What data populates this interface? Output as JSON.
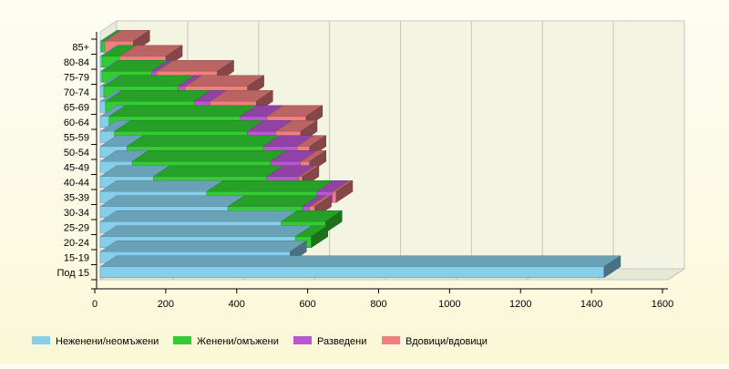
{
  "chart_data": {
    "type": "bar",
    "orientation": "horizontal",
    "stacked": true,
    "style": "3d",
    "title": "",
    "xlabel": "",
    "ylabel": "",
    "xlim": [
      0,
      1600
    ],
    "x_ticks": [
      0,
      200,
      400,
      600,
      800,
      1000,
      1200,
      1400,
      1600
    ],
    "grid": true,
    "legend_position": "bottom",
    "categories": [
      "Под 15",
      "15-19",
      "20-24",
      "25-29",
      "30-34",
      "35-39",
      "40-44",
      "45-49",
      "50-54",
      "55-59",
      "60-64",
      "65-69",
      "70-74",
      "75-79",
      "80-84",
      "85+"
    ],
    "series": [
      {
        "name": "Неженени/неомъжени",
        "color": "#87ceeb",
        "values": [
          1420,
          535,
          550,
          510,
          360,
          300,
          150,
          90,
          75,
          40,
          25,
          15,
          10,
          5,
          5,
          3
        ]
      },
      {
        "name": "Женени/омъжени",
        "color": "#32cd32",
        "values": [
          0,
          0,
          45,
          125,
          210,
          310,
          320,
          390,
          385,
          375,
          370,
          250,
          210,
          140,
          50,
          10
        ]
      },
      {
        "name": "Разведени",
        "color": "#ba55d3",
        "values": [
          0,
          0,
          0,
          0,
          20,
          45,
          90,
          85,
          95,
          80,
          75,
          45,
          20,
          15,
          0,
          0
        ]
      },
      {
        "name": "Вдовици/вдовици",
        "color": "#f08080",
        "values": [
          0,
          0,
          0,
          0,
          15,
          10,
          10,
          25,
          35,
          70,
          110,
          130,
          175,
          170,
          130,
          80
        ]
      }
    ]
  }
}
